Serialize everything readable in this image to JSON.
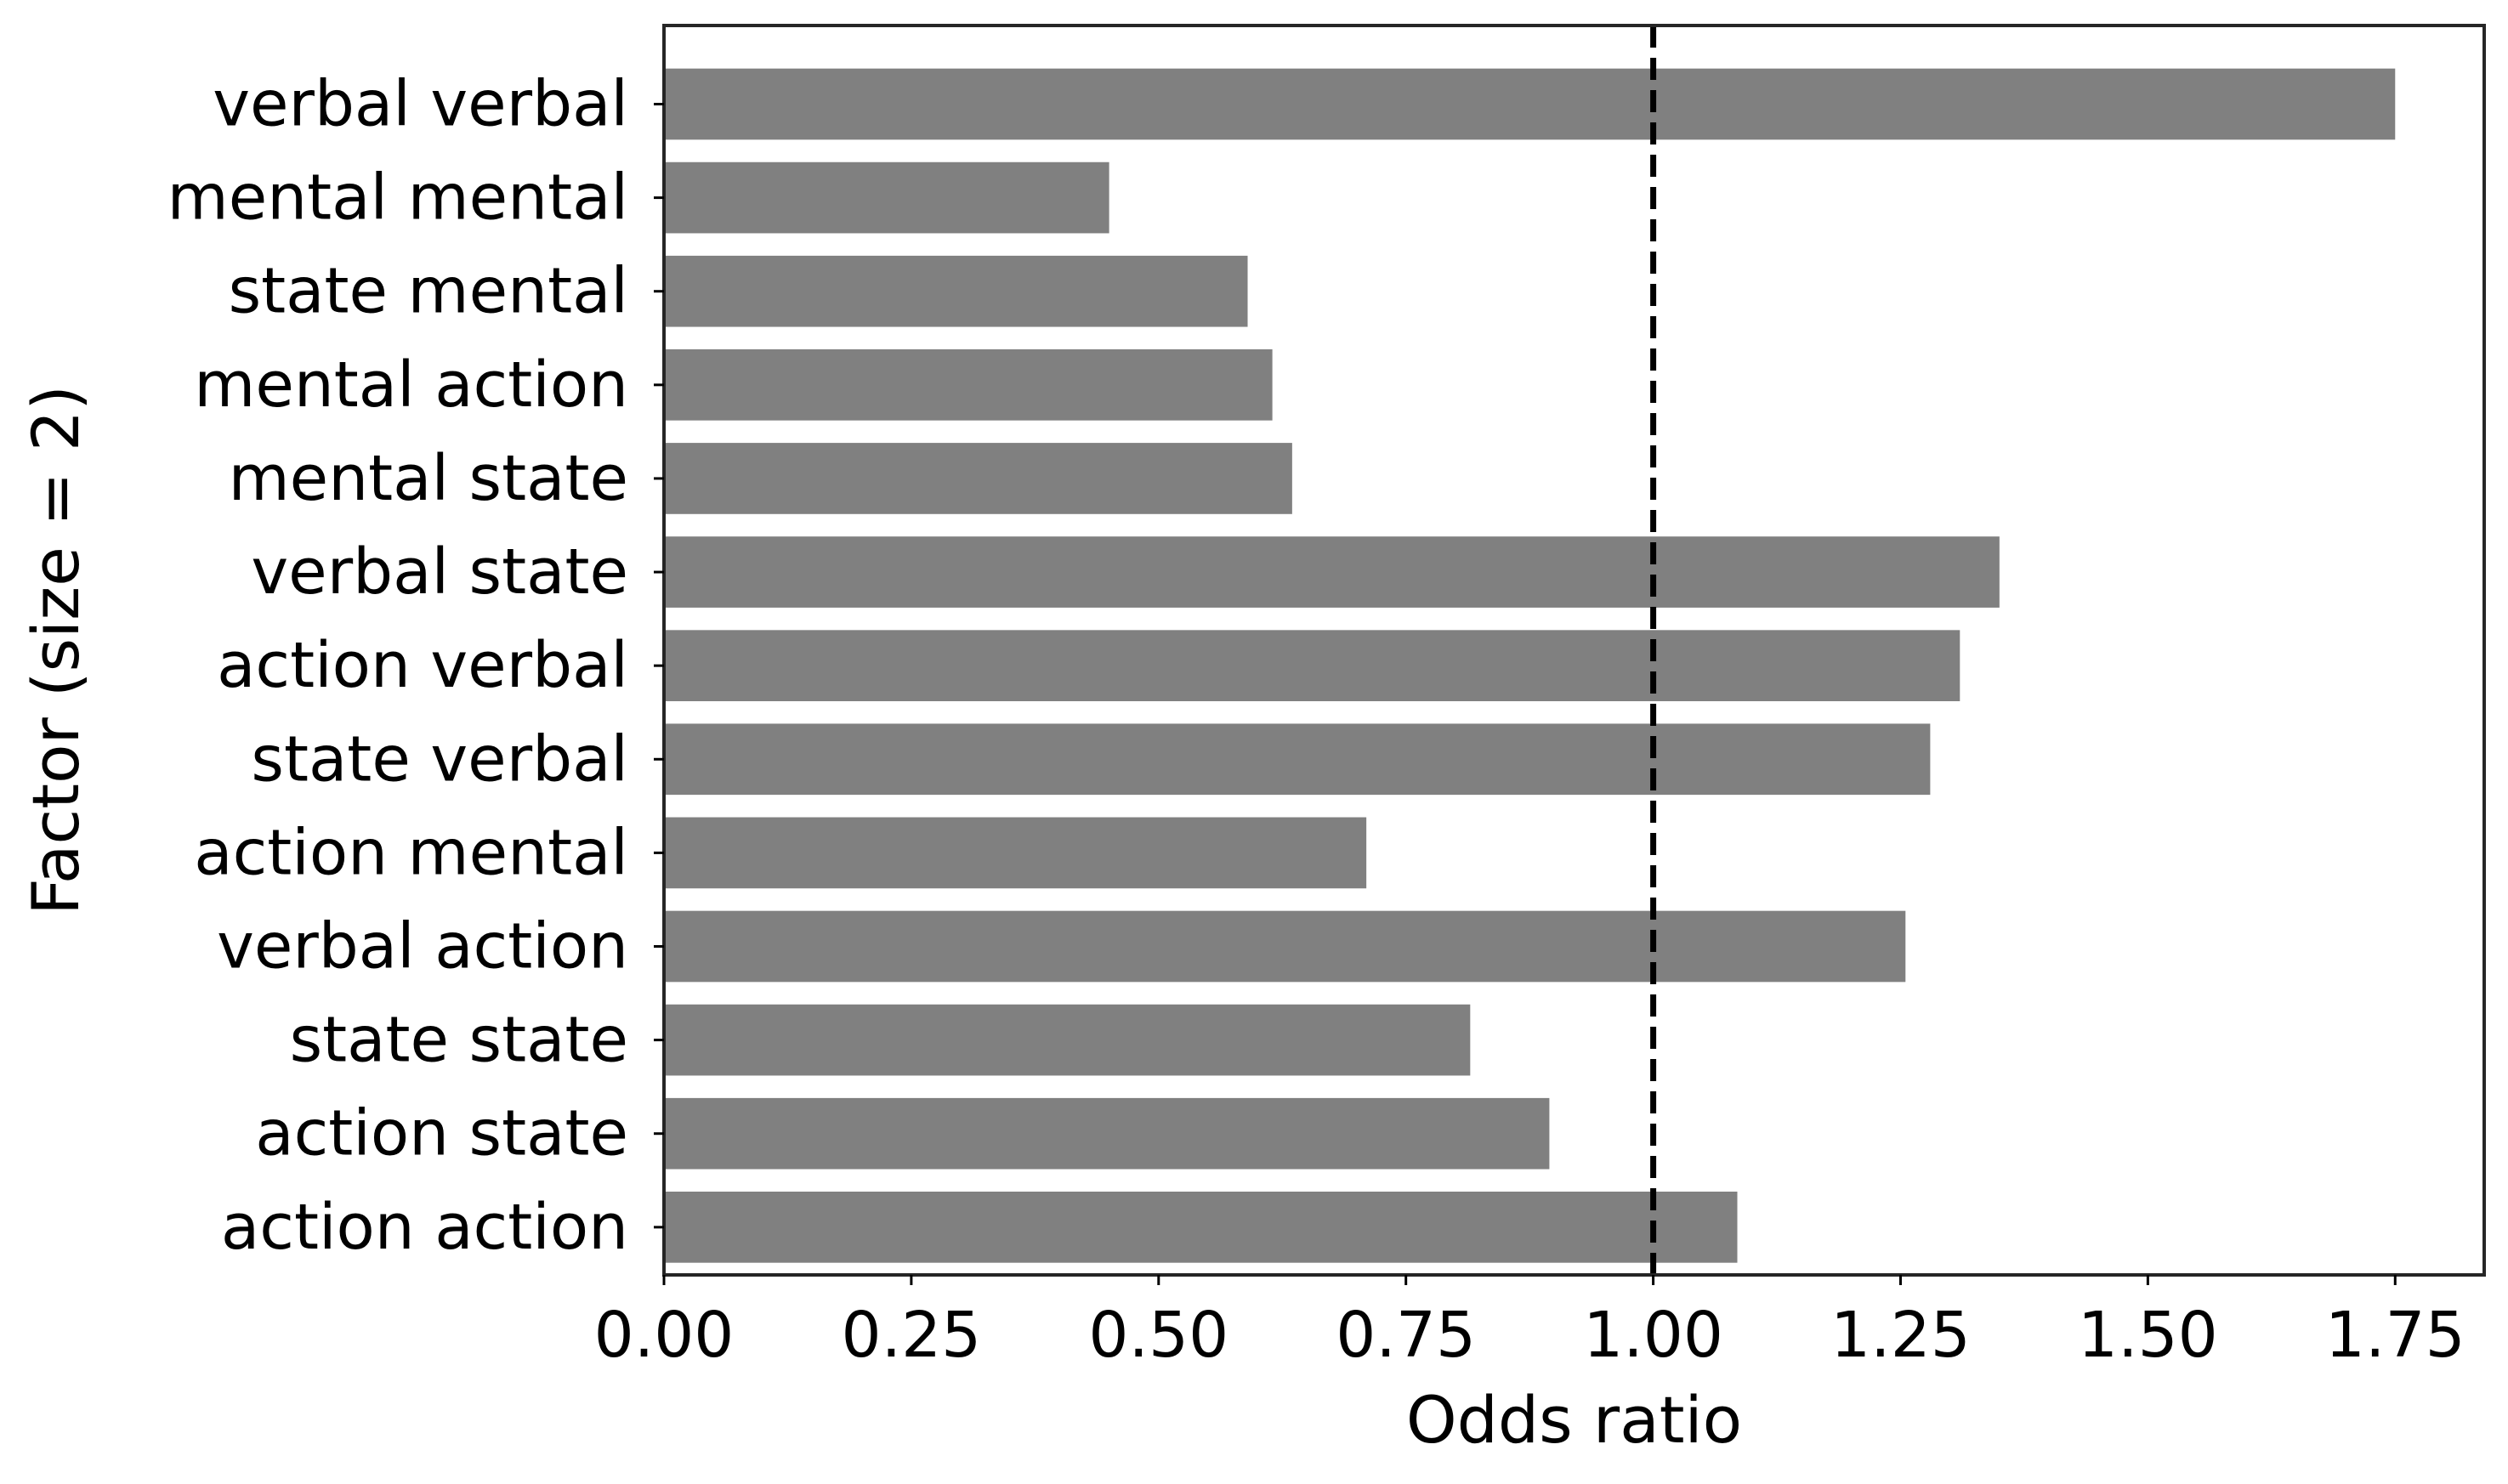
{
  "chart_data": {
    "type": "bar",
    "orientation": "horizontal",
    "title": "",
    "xlabel": "Odds ratio",
    "ylabel": "Factor (size = 2)",
    "categories": [
      "verbal verbal",
      "mental mental",
      "state mental",
      "mental action",
      "mental state",
      "verbal state",
      "action verbal",
      "state verbal",
      "action mental",
      "verbal action",
      "state state",
      "action state",
      "action action"
    ],
    "values": [
      1.75,
      0.45,
      0.59,
      0.615,
      0.635,
      1.35,
      1.31,
      1.28,
      0.71,
      1.255,
      0.815,
      0.895,
      1.085
    ],
    "xlim": [
      0,
      1.84
    ],
    "xticks": [
      0.0,
      0.25,
      0.5,
      0.75,
      1.0,
      1.25,
      1.5,
      1.75
    ],
    "xtick_labels": [
      "0.00",
      "0.25",
      "0.50",
      "0.75",
      "1.00",
      "1.25",
      "1.50",
      "1.75"
    ],
    "reference_line": {
      "x": 1.0,
      "style": "dashed",
      "color": "#000000"
    },
    "bar_color": "#808080",
    "grid": false,
    "legend": "none"
  }
}
